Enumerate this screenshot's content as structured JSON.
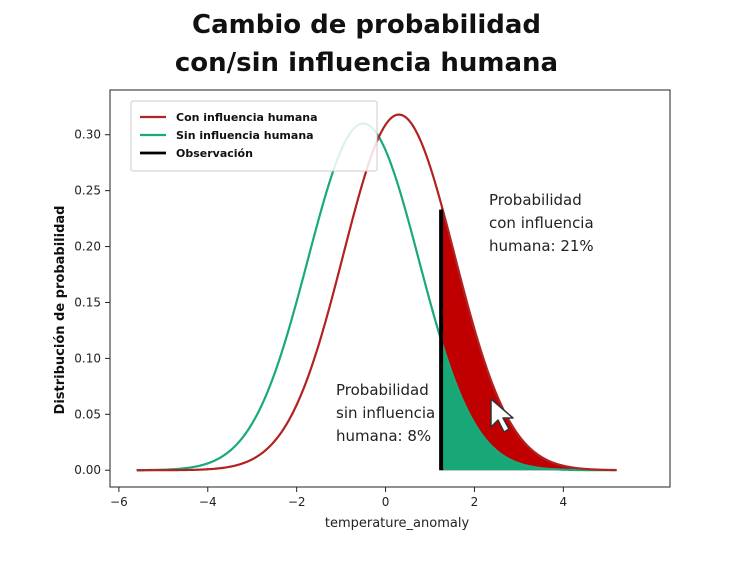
{
  "title": {
    "line1": "Cambio de probabilidad",
    "line2": "con/sin influencia humana"
  },
  "chart_data": {
    "type": "line",
    "xlabel": "temperature_anomaly",
    "ylabel": "Distribución de probabilidad",
    "xlim": [
      -6.2,
      6.4
    ],
    "ylim": [
      -0.015,
      0.34
    ],
    "xticks": [
      -6,
      -4,
      -2,
      0,
      2,
      4
    ],
    "yticks": [
      0.0,
      0.05,
      0.1,
      0.15,
      0.2,
      0.25,
      0.3
    ],
    "ytick_labels": [
      "0.00",
      "0.05",
      "0.10",
      "0.15",
      "0.20",
      "0.25",
      "0.30"
    ],
    "xtick_labels": [
      "−6",
      "−4",
      "−2",
      "0",
      "2",
      "4"
    ],
    "x_range": [
      -5.6,
      5.2
    ],
    "grid": false,
    "legend_position": "top-left",
    "series": [
      {
        "name": "Con influencia humana",
        "color": "#b22222",
        "mean": 0.3,
        "std": 1.25,
        "peak": 0.318
      },
      {
        "name": "Sin influencia humana",
        "color": "#1aa97a",
        "mean": -0.5,
        "std": 1.25,
        "peak": 0.31
      }
    ],
    "observation": {
      "name": "Observación",
      "x": 1.25,
      "y_top": 0.233,
      "color": "#000000"
    },
    "fills": {
      "con_color": "#c00000",
      "sin_color": "#18a878"
    },
    "annotations": {
      "con": [
        "Probabilidad",
        "con influencia",
        "humana: 21%"
      ],
      "sin": [
        "Probabilidad",
        "sin influencia",
        "humana: 8%"
      ]
    }
  }
}
